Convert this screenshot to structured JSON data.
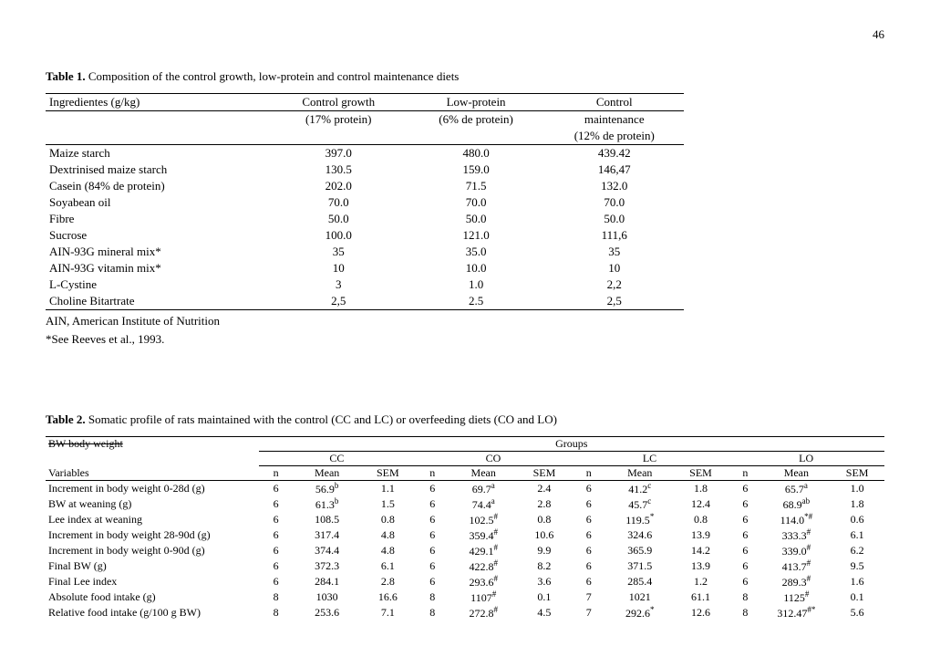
{
  "page_number": "46",
  "table1": {
    "caption_bold": "Table 1.",
    "caption_rest": " Composition of the control growth, low-protein and control maintenance diets",
    "col_label": "Ingredientes (g/kg)",
    "headers": [
      {
        "line1": "Control growth",
        "line2": "(17% protein)",
        "line3": ""
      },
      {
        "line1": "Low-protein",
        "line2": "(6% de protein)",
        "line3": ""
      },
      {
        "line1": "Control",
        "line2": "maintenance",
        "line3": "(12% de protein)"
      }
    ],
    "rows": [
      {
        "name": "Maize starch",
        "v": [
          "397.0",
          "480.0",
          "439.42"
        ]
      },
      {
        "name": "Dextrinised maize starch",
        "v": [
          "130.5",
          "159.0",
          "146,47"
        ]
      },
      {
        "name": "Casein (84% de protein)",
        "v": [
          "202.0",
          "71.5",
          "132.0"
        ]
      },
      {
        "name": "Soyabean oil",
        "v": [
          "70.0",
          "70.0",
          "70.0"
        ]
      },
      {
        "name": "Fibre",
        "v": [
          "50.0",
          "50.0",
          "50.0"
        ]
      },
      {
        "name": "Sucrose",
        "v": [
          "100.0",
          "121.0",
          "111,6"
        ]
      },
      {
        "name": "AIN-93G mineral mix*",
        "v": [
          "35",
          "35.0",
          "35"
        ]
      },
      {
        "name": "AIN-93G vitamin mix*",
        "v": [
          "10",
          "10.0",
          "10"
        ]
      },
      {
        "name": "L-Cystine",
        "v": [
          "3",
          "1.0",
          "2,2"
        ]
      },
      {
        "name": "Choline Bitartrate",
        "v": [
          "2,5",
          "2.5",
          "2,5"
        ]
      }
    ],
    "footnote1": "AIN, American Institute of Nutrition",
    "footnote2": "*See Reeves et al., 1993."
  },
  "table2": {
    "caption_bold": "Table 2.",
    "caption_rest": " Somatic profile of rats maintained with the control (CC and LC) or overfeeding diets (CO and LO)",
    "bw_note": "BW body weight",
    "groups_label": "Groups",
    "group_names": [
      "CC",
      "CO",
      "LC",
      "LO"
    ],
    "var_label": "Variables",
    "sub_headers": [
      "n",
      "Mean",
      "SEM"
    ],
    "rows": [
      {
        "name": "Increment in body weight 0-28d (g)",
        "g": [
          [
            "6",
            "56.9",
            "1.1",
            "b"
          ],
          [
            "6",
            "69.7",
            "2.4",
            "a"
          ],
          [
            "6",
            "41.2",
            "1.8",
            "c"
          ],
          [
            "6",
            "65.7",
            "1.0",
            "a"
          ]
        ]
      },
      {
        "name": "BW at weaning (g)",
        "g": [
          [
            "6",
            "61.3",
            "1.5",
            "b"
          ],
          [
            "6",
            "74.4",
            "2.8",
            "a"
          ],
          [
            "6",
            "45.7",
            "12.4",
            "c"
          ],
          [
            "6",
            "68.9",
            "1.8",
            "ab"
          ]
        ]
      },
      {
        "name": "Lee index at weaning",
        "g": [
          [
            "6",
            "108.5",
            "0.8",
            ""
          ],
          [
            "6",
            "102.5",
            "0.8",
            "#"
          ],
          [
            "6",
            "119.5",
            "0.8",
            "*"
          ],
          [
            "6",
            "114.0",
            "0.6",
            "*#"
          ]
        ]
      },
      {
        "name": "Increment in body weight 28-90d (g)",
        "g": [
          [
            "6",
            "317.4",
            "4.8",
            ""
          ],
          [
            "6",
            "359.4",
            "10.6",
            "#"
          ],
          [
            "6",
            "324.6",
            "13.9",
            ""
          ],
          [
            "6",
            "333.3",
            "6.1",
            "#"
          ]
        ]
      },
      {
        "name": "Increment in body weight 0-90d  (g)",
        "g": [
          [
            "6",
            "374.4",
            "4.8",
            ""
          ],
          [
            "6",
            "429.1",
            "9.9",
            "#"
          ],
          [
            "6",
            "365.9",
            "14.2",
            ""
          ],
          [
            "6",
            "339.0",
            "6.2",
            "#"
          ]
        ]
      },
      {
        "name": "Final BW (g)",
        "g": [
          [
            "6",
            "372.3",
            "6.1",
            ""
          ],
          [
            "6",
            "422.8",
            "8.2",
            "#"
          ],
          [
            "6",
            "371.5",
            "13.9",
            ""
          ],
          [
            "6",
            "413.7",
            "9.5",
            "#"
          ]
        ]
      },
      {
        "name": "Final Lee index",
        "g": [
          [
            "6",
            "284.1",
            "2.8",
            ""
          ],
          [
            "6",
            "293.6",
            "3.6",
            "#"
          ],
          [
            "6",
            "285.4",
            "1.2",
            ""
          ],
          [
            "6",
            "289.3",
            "1.6",
            "#"
          ]
        ]
      },
      {
        "name": "Absolute food intake (g)",
        "g": [
          [
            "8",
            "1030",
            "16.6",
            ""
          ],
          [
            "8",
            "1107",
            "0.1",
            "#"
          ],
          [
            "7",
            "1021",
            "61.1",
            ""
          ],
          [
            "8",
            "1125",
            "0.1",
            "#"
          ]
        ]
      },
      {
        "name": "Relative food intake (g/100 g BW)",
        "g": [
          [
            "8",
            "253.6",
            "7.1",
            ""
          ],
          [
            "8",
            "272.8",
            "4.5",
            "#"
          ],
          [
            "7",
            "292.6",
            "12.6",
            "*"
          ],
          [
            "8",
            "312.47",
            "5.6",
            "#*"
          ]
        ]
      }
    ]
  }
}
